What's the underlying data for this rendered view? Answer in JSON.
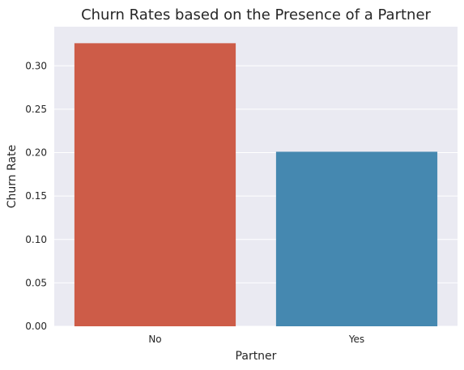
{
  "chart_data": {
    "type": "bar",
    "title": "Churn Rates based on the Presence of a Partner",
    "xlabel": "Partner",
    "ylabel": "Churn Rate",
    "categories": [
      "No",
      "Yes"
    ],
    "values": [
      0.326,
      0.201
    ],
    "colors": [
      "#CD5C48",
      "#4588B0"
    ],
    "ylim": [
      0,
      0.345
    ],
    "yticks": [
      "0.00",
      "0.05",
      "0.10",
      "0.15",
      "0.20",
      "0.25",
      "0.30"
    ],
    "ytick_values": [
      0,
      0.05,
      0.1,
      0.15,
      0.2,
      0.25,
      0.3
    ],
    "grid": true,
    "background": "#EAEAF2"
  }
}
